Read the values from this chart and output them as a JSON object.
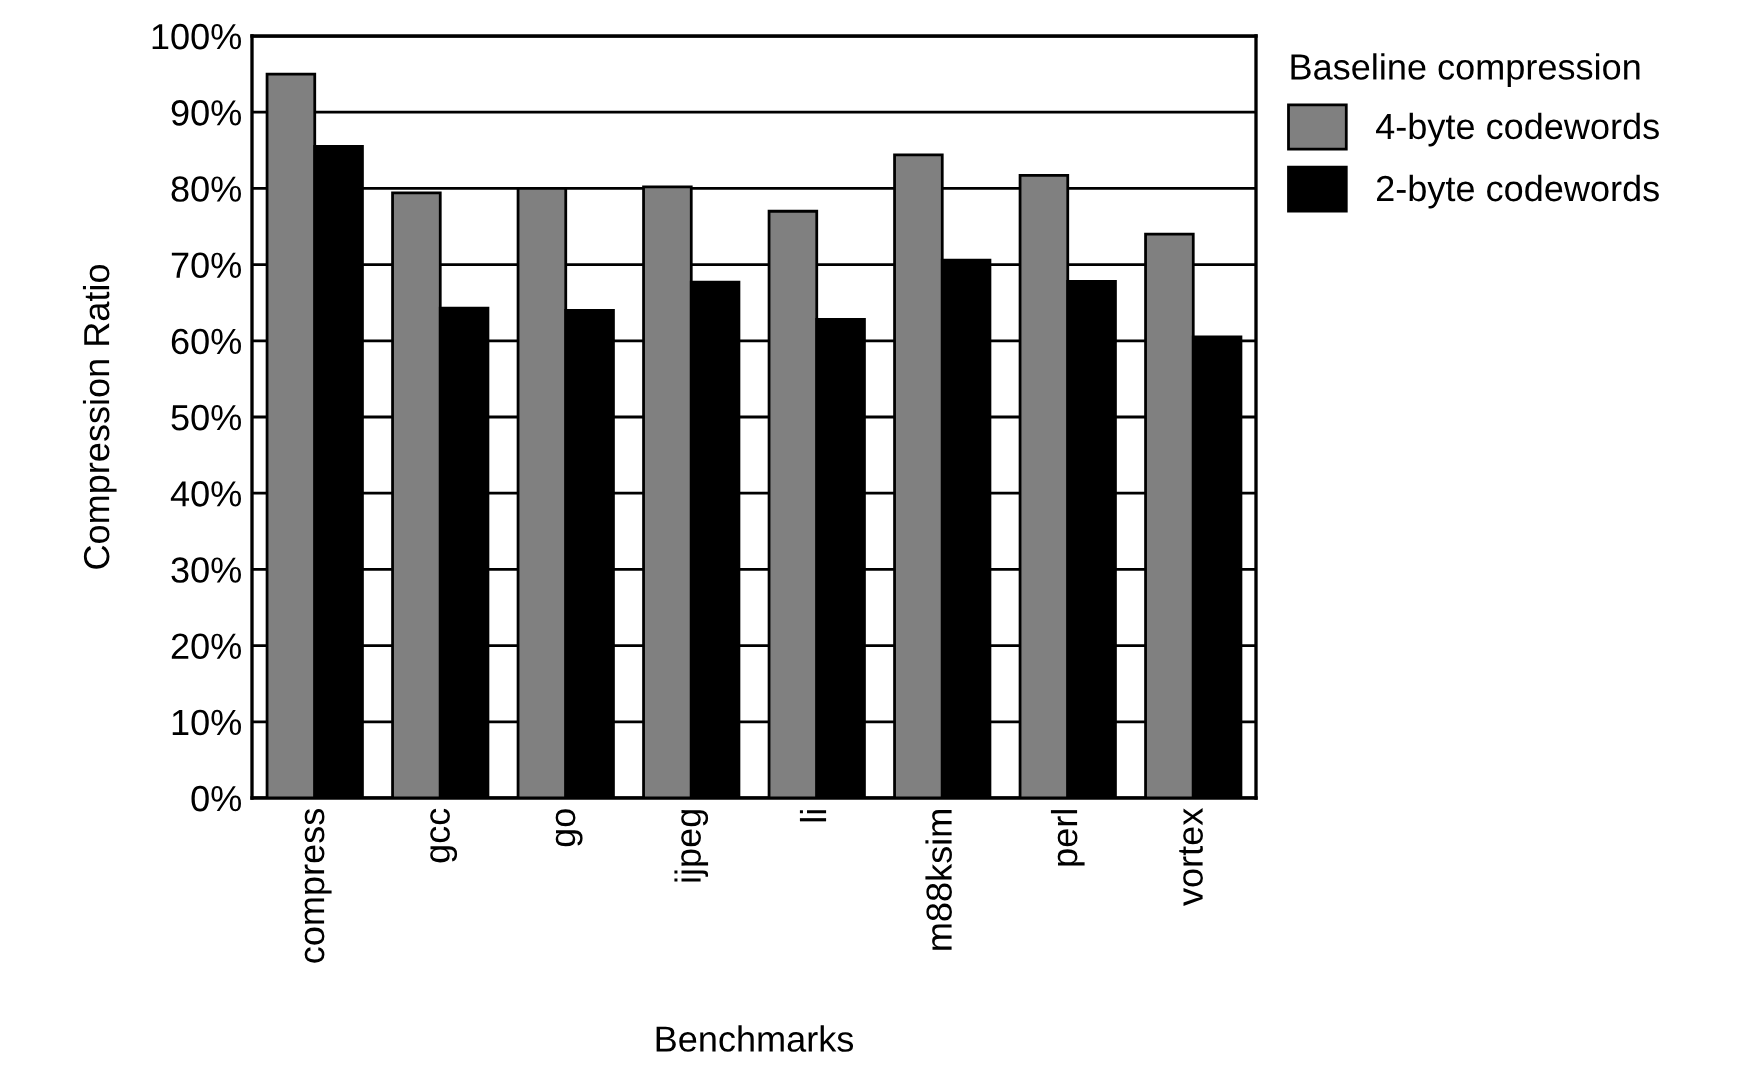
{
  "chart_data": {
    "type": "bar",
    "xlabel": "Benchmarks",
    "ylabel": "Compression Ratio",
    "legend_title": "Baseline compression",
    "categories": [
      "compress",
      "gcc",
      "go",
      "ijpeg",
      "li",
      "m88ksim",
      "perl",
      "vortex"
    ],
    "series": [
      {
        "name": "4-byte codewords",
        "color": "#808080",
        "values": [
          95.0,
          79.4,
          80.0,
          80.2,
          77.0,
          84.4,
          81.7,
          74.0
        ]
      },
      {
        "name": "2-byte codewords",
        "color": "#000000",
        "values": [
          85.5,
          64.3,
          64.0,
          67.7,
          62.8,
          70.6,
          67.8,
          60.5
        ]
      }
    ],
    "ylim": [
      0,
      100
    ],
    "yticks": [
      {
        "value": 0,
        "label": "0%"
      },
      {
        "value": 10,
        "label": "10%"
      },
      {
        "value": 20,
        "label": "20%"
      },
      {
        "value": 30,
        "label": "30%"
      },
      {
        "value": 40,
        "label": "40%"
      },
      {
        "value": 50,
        "label": "50%"
      },
      {
        "value": 60,
        "label": "60%"
      },
      {
        "value": 70,
        "label": "70%"
      },
      {
        "value": 80,
        "label": "80%"
      },
      {
        "value": 90,
        "label": "90%"
      },
      {
        "value": 100,
        "label": "100%"
      }
    ],
    "grid": "y",
    "legend": "right"
  }
}
